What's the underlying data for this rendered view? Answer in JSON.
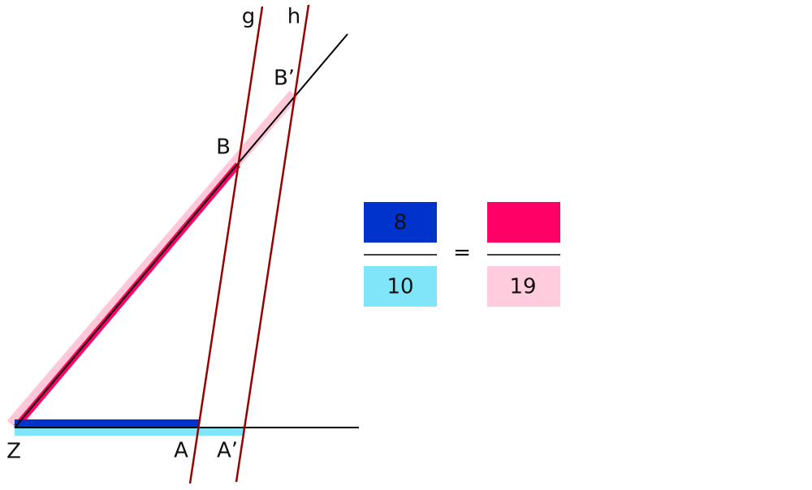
{
  "points": [
    {
      "label": "Z"
    },
    {
      "label": "A"
    },
    {
      "label": "A’"
    },
    {
      "label": "B"
    },
    {
      "label": "B’"
    }
  ],
  "lines": [
    {
      "label": "g"
    },
    {
      "label": "h"
    }
  ],
  "proportion": {
    "left": {
      "numerator": 8,
      "denominator": 10
    },
    "equals": "=",
    "right": {
      "denominator": 19
    }
  }
}
